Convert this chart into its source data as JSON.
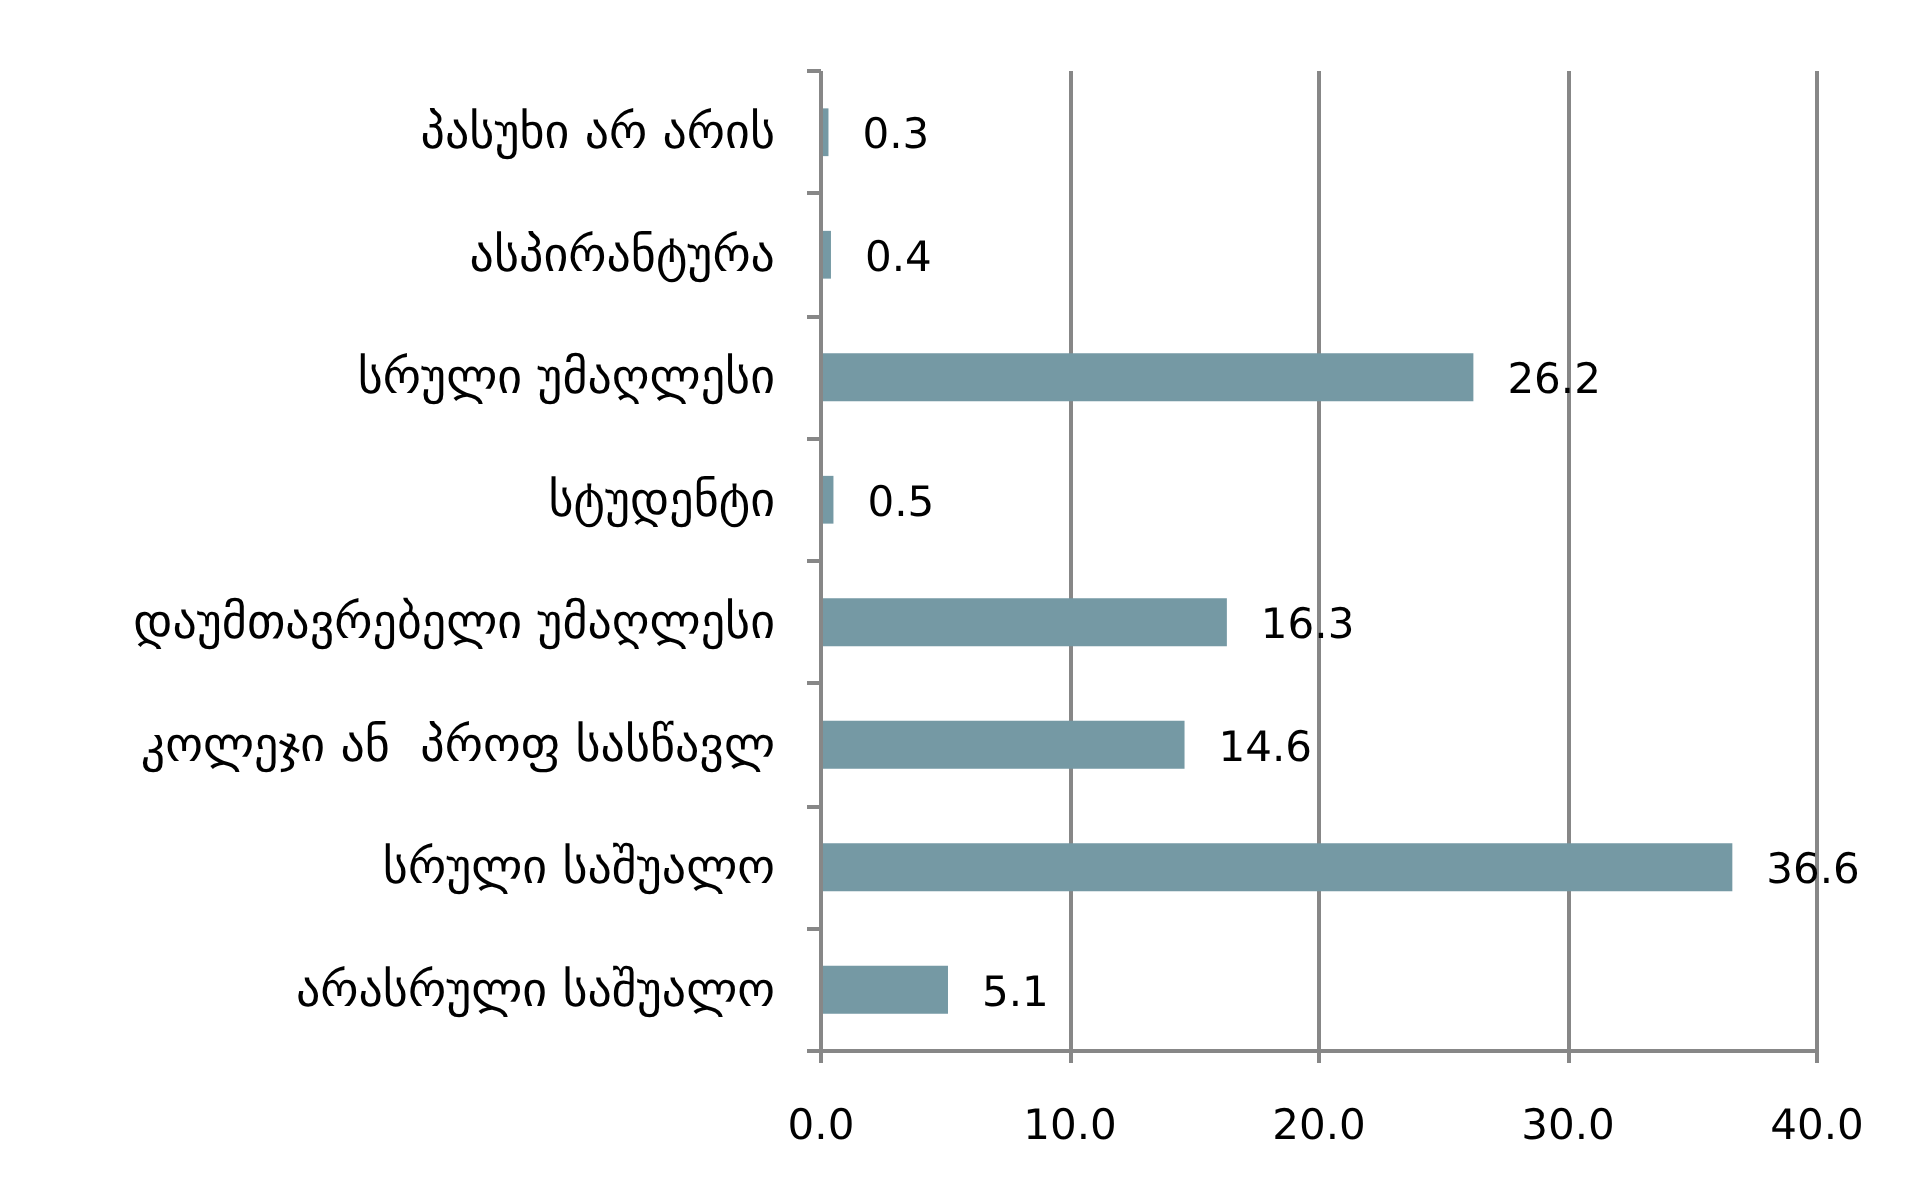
{
  "chart_data": {
    "type": "bar",
    "orientation": "horizontal",
    "categories": [
      "პასუხი არ არის",
      "ასპირანტურა",
      "სრული უმაღლესი",
      "სტუდენტი",
      "დაუმთავრებელი უმაღლესი",
      "კოლეჯი ან  პროფ სასწავლ",
      "სრული საშუალო",
      "არასრული საშუალო"
    ],
    "values": [
      0.3,
      0.4,
      26.2,
      0.5,
      16.3,
      14.6,
      36.6,
      5.1
    ],
    "color": "#7599a4",
    "xlim": [
      0,
      40
    ],
    "xticks": [
      {
        "value": 0,
        "label": "0.0"
      },
      {
        "value": 10,
        "label": "10.0"
      },
      {
        "value": 20,
        "label": "20.0"
      },
      {
        "value": 30,
        "label": "30.0"
      },
      {
        "value": 40,
        "label": "40.0"
      }
    ],
    "grid": "x",
    "data_labels": true
  }
}
